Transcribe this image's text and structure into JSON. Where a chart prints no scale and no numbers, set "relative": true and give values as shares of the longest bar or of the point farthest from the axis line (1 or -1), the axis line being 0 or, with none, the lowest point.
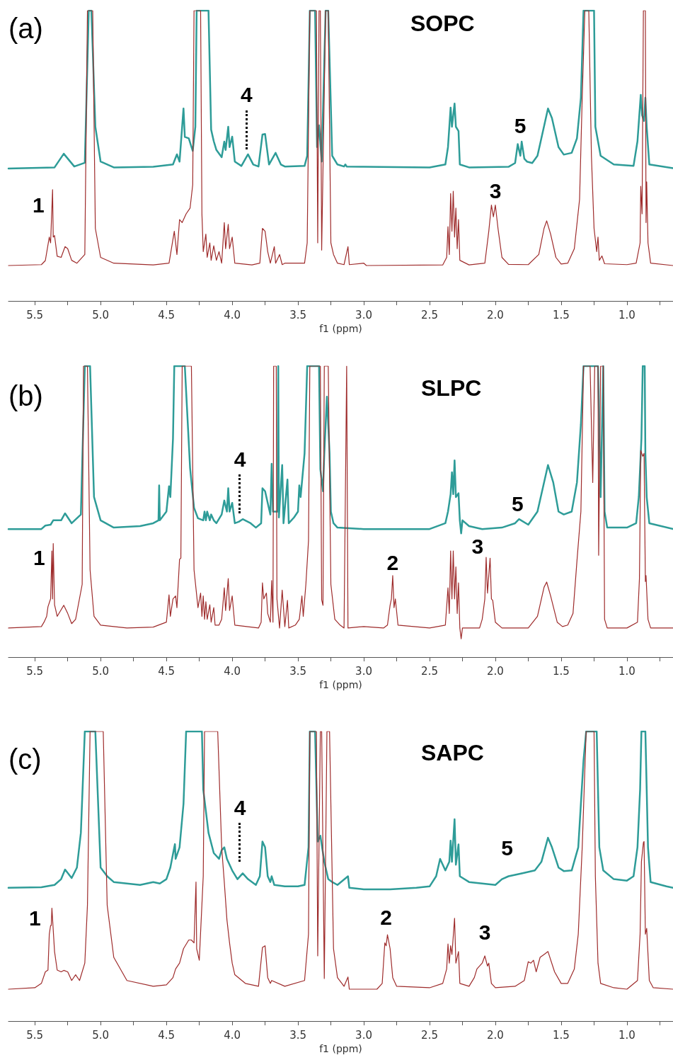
{
  "chart_data": [
    {
      "type": "line",
      "relative": true,
      "title": "SOPC",
      "xlabel": "f1 (ppm)",
      "xlim": [
        5.7,
        0.65
      ],
      "xticks": [
        {
          "value": 5.5,
          "label": "5.5"
        },
        {
          "value": 5.25,
          "label": null
        },
        {
          "value": 5.0,
          "label": "5.0"
        },
        {
          "value": 4.75,
          "label": null
        },
        {
          "value": 4.5,
          "label": "4.5"
        },
        {
          "value": 4.25,
          "label": null
        },
        {
          "value": 4.0,
          "label": "4.0"
        },
        {
          "value": 3.75,
          "label": null
        },
        {
          "value": 3.5,
          "label": "3.5"
        },
        {
          "value": 3.25,
          "label": null
        },
        {
          "value": 3.0,
          "label": "3.0"
        },
        {
          "value": 2.75,
          "label": null
        },
        {
          "value": 2.5,
          "label": "2.5"
        },
        {
          "value": 2.25,
          "label": null
        },
        {
          "value": 2.0,
          "label": "2.0"
        },
        {
          "value": 1.75,
          "label": null
        },
        {
          "value": 1.5,
          "label": "1.5"
        },
        {
          "value": 1.25,
          "label": null
        },
        {
          "value": 1.0,
          "label": "1.0"
        },
        {
          "value": 0.75,
          "label": null
        }
      ],
      "annotations": [
        "(a)",
        {
          "text": "1",
          "x": 5.365,
          "y": 0.383
        },
        {
          "text": "4",
          "x": 3.88,
          "y": 0.505
        },
        {
          "text": "5",
          "x": 1.8,
          "y": 0.549
        },
        {
          "text": "3",
          "x": 2.0,
          "y": 0.33
        }
      ],
      "series": [
        {
          "color": "#2e9c98",
          "x": [
            5.7,
            5.35,
            5.28,
            5.2,
            5.12,
            5.09,
            5.07,
            5.04,
            5.0,
            4.9,
            4.6,
            4.45,
            4.42,
            4.4,
            4.37,
            4.36,
            4.33,
            4.3,
            4.28,
            4.27,
            4.18,
            4.16,
            4.14,
            4.12,
            4.08,
            4.06,
            4.05,
            4.03,
            4.02,
            4.0,
            3.98,
            3.93,
            3.88,
            3.84,
            3.8,
            3.77,
            3.75,
            3.72,
            3.67,
            3.63,
            3.6,
            3.45,
            3.43,
            3.41,
            3.37,
            3.355,
            3.34,
            3.32,
            3.29,
            3.27,
            3.24,
            3.2,
            3.15,
            3.14,
            3.13,
            3.0,
            2.5,
            2.38,
            2.36,
            2.34,
            2.33,
            2.31,
            2.3,
            2.28,
            2.27,
            2.2,
            1.9,
            1.85,
            1.83,
            1.81,
            1.8,
            1.78,
            1.76,
            1.72,
            1.68,
            1.6,
            1.57,
            1.52,
            1.48,
            1.42,
            1.38,
            1.35,
            1.33,
            1.25,
            1.24,
            1.2,
            1.1,
            0.95,
            0.92,
            0.895,
            0.885,
            0.87,
            0.86,
            0.85,
            0.83,
            0.65
          ],
          "values": [
            0.456,
            0.46,
            0.507,
            0.463,
            0.476,
            1,
            1,
            0.6,
            0.48,
            0.46,
            0.462,
            0.47,
            0.505,
            0.48,
            0.663,
            0.565,
            0.56,
            0.517,
            0.6,
            1,
            1,
            0.59,
            0.55,
            0.52,
            0.495,
            0.549,
            0.52,
            0.6,
            0.53,
            0.566,
            0.48,
            0.465,
            0.505,
            0.47,
            0.463,
            0.573,
            0.575,
            0.47,
            0.51,
            0.47,
            0.463,
            0.465,
            0.5,
            1,
            1,
            0.53,
            0.605,
            0.48,
            1,
            1,
            0.5,
            0.47,
            0.463,
            0.47,
            0.463,
            0.462,
            0.46,
            0.47,
            0.53,
            0.666,
            0.6,
            0.68,
            0.6,
            0.585,
            0.47,
            0.46,
            0.462,
            0.475,
            0.54,
            0.5,
            0.549,
            0.49,
            0.48,
            0.475,
            0.5,
            0.663,
            0.63,
            0.53,
            0.504,
            0.51,
            0.56,
            0.7,
            1,
            1,
            0.6,
            0.5,
            0.47,
            0.465,
            0.55,
            0.71,
            0.64,
            0.62,
            0.7,
            0.6,
            0.47,
            0.457
          ]
        },
        {
          "color": "#9e2b2b",
          "x": [
            5.7,
            5.45,
            5.42,
            5.39,
            5.38,
            5.365,
            5.36,
            5.35,
            5.33,
            5.3,
            5.27,
            5.25,
            5.22,
            5.18,
            5.12,
            5.1,
            5.06,
            5.04,
            5.0,
            4.9,
            4.6,
            4.48,
            4.44,
            4.42,
            4.4,
            4.38,
            4.35,
            4.32,
            4.3,
            4.29,
            4.24,
            4.23,
            4.22,
            4.2,
            4.19,
            4.17,
            4.16,
            4.14,
            4.12,
            4.1,
            4.08,
            4.06,
            4.05,
            4.03,
            4.02,
            4.0,
            3.98,
            3.85,
            3.79,
            3.77,
            3.75,
            3.73,
            3.71,
            3.68,
            3.67,
            3.64,
            3.62,
            3.6,
            3.45,
            3.43,
            3.41,
            3.36,
            3.35,
            3.34,
            3.33,
            3.32,
            3.29,
            3.27,
            3.25,
            3.23,
            3.2,
            3.15,
            3.12,
            3.11,
            3.0,
            2.98,
            2.4,
            2.37,
            2.36,
            2.35,
            2.34,
            2.33,
            2.32,
            2.31,
            2.3,
            2.29,
            2.28,
            2.27,
            2.2,
            2.08,
            2.05,
            2.03,
            2.015,
            2.0,
            1.98,
            1.95,
            1.9,
            1.75,
            1.67,
            1.63,
            1.61,
            1.58,
            1.54,
            1.5,
            1.45,
            1.4,
            1.36,
            1.34,
            1.32,
            1.29,
            1.27,
            1.25,
            1.23,
            1.22,
            1.21,
            1.19,
            1.17,
            1.0,
            0.93,
            0.9,
            0.895,
            0.885,
            0.875,
            0.86,
            0.855,
            0.85,
            0.84,
            0.82,
            0.65
          ],
          "values": [
            0.122,
            0.125,
            0.139,
            0.22,
            0.2,
            0.383,
            0.22,
            0.225,
            0.154,
            0.15,
            0.187,
            0.18,
            0.14,
            0.13,
            0.16,
            1,
            1,
            0.25,
            0.15,
            0.13,
            0.124,
            0.13,
            0.24,
            0.16,
            0.28,
            0.27,
            0.3,
            0.32,
            0.4,
            1,
            1,
            0.3,
            0.17,
            0.23,
            0.15,
            0.2,
            0.14,
            0.19,
            0.14,
            0.17,
            0.13,
            0.27,
            0.18,
            0.264,
            0.18,
            0.22,
            0.13,
            0.124,
            0.13,
            0.25,
            0.24,
            0.17,
            0.13,
            0.187,
            0.13,
            0.16,
            0.125,
            0.13,
            0.13,
            0.2,
            1,
            1,
            0.2,
            1,
            1,
            0.175,
            1,
            1,
            0.2,
            0.16,
            0.13,
            0.125,
            0.187,
            0.125,
            0.13,
            0.122,
            0.124,
            0.15,
            0.256,
            0.16,
            0.37,
            0.24,
            0.378,
            0.22,
            0.32,
            0.18,
            0.28,
            0.14,
            0.124,
            0.13,
            0.24,
            0.33,
            0.29,
            0.33,
            0.25,
            0.15,
            0.126,
            0.125,
            0.16,
            0.25,
            0.276,
            0.23,
            0.15,
            0.127,
            0.13,
            0.18,
            0.35,
            0.7,
            1,
            1,
            0.5,
            0.25,
            0.17,
            0.22,
            0.14,
            0.155,
            0.128,
            0.125,
            0.13,
            0.2,
            0.395,
            0.3,
            1,
            1,
            0.27,
            0.41,
            0.2,
            0.13,
            0.122
          ]
        }
      ]
    },
    {
      "type": "line",
      "relative": true,
      "title": "SLPC",
      "xlabel": "f1 (ppm)",
      "xlim": [
        5.7,
        0.65
      ],
      "xticks": [
        {
          "value": 5.5,
          "label": "5.5"
        },
        {
          "value": 5.25,
          "label": null
        },
        {
          "value": 5.0,
          "label": "5.0"
        },
        {
          "value": 4.75,
          "label": null
        },
        {
          "value": 4.5,
          "label": "4.5"
        },
        {
          "value": 4.25,
          "label": null
        },
        {
          "value": 4.0,
          "label": "4.0"
        },
        {
          "value": 3.75,
          "label": null
        },
        {
          "value": 3.5,
          "label": "3.5"
        },
        {
          "value": 3.25,
          "label": null
        },
        {
          "value": 3.0,
          "label": "3.0"
        },
        {
          "value": 2.75,
          "label": null
        },
        {
          "value": 2.5,
          "label": "2.5"
        },
        {
          "value": 2.25,
          "label": null
        },
        {
          "value": 2.0,
          "label": "2.0"
        },
        {
          "value": 1.75,
          "label": null
        },
        {
          "value": 1.5,
          "label": "1.5"
        },
        {
          "value": 1.25,
          "label": null
        },
        {
          "value": 1.0,
          "label": "1.0"
        },
        {
          "value": 0.75,
          "label": null
        }
      ],
      "annotations": [
        "(b)",
        {
          "text": "1",
          "x": 5.36,
          "y": 0.39
        },
        {
          "text": "4",
          "x": 3.92,
          "y": 0.474
        },
        {
          "text": "5",
          "x": 1.82,
          "y": 0.474
        },
        {
          "text": "2",
          "x": 2.78,
          "y": 0.28
        },
        {
          "text": "3",
          "x": 2.07,
          "y": 0.343
        }
      ],
      "series": [
        {
          "color": "#2e9c98",
          "x": [
            5.7,
            5.45,
            5.42,
            5.38,
            5.36,
            5.3,
            5.27,
            5.22,
            5.15,
            5.12,
            5.08,
            5.05,
            5.0,
            4.9,
            4.7,
            4.6,
            4.56,
            4.555,
            4.55,
            4.5,
            4.48,
            4.47,
            4.45,
            4.44,
            4.36,
            4.32,
            4.29,
            4.26,
            4.22,
            4.21,
            4.2,
            4.19,
            4.17,
            4.16,
            4.14,
            4.12,
            4.08,
            4.06,
            4.04,
            4.03,
            4.02,
            4.0,
            3.98,
            3.95,
            3.92,
            3.86,
            3.82,
            3.78,
            3.77,
            3.75,
            3.73,
            3.71,
            3.7,
            3.69,
            3.655,
            3.65,
            3.645,
            3.62,
            3.61,
            3.58,
            3.57,
            3.53,
            3.5,
            3.49,
            3.48,
            3.45,
            3.43,
            3.34,
            3.33,
            3.31,
            3.3,
            3.28,
            3.26,
            3.25,
            3.23,
            3.2,
            3.0,
            2.5,
            2.38,
            2.36,
            2.34,
            2.33,
            2.32,
            2.31,
            2.3,
            2.28,
            2.27,
            2.26,
            2.25,
            2.2,
            2.1,
            1.95,
            1.85,
            1.82,
            1.75,
            1.68,
            1.6,
            1.56,
            1.52,
            1.48,
            1.42,
            1.38,
            1.35,
            1.33,
            1.24,
            1.22,
            1.2,
            1.18,
            1.17,
            1.15,
            1.0,
            0.93,
            0.91,
            0.89,
            0.88,
            0.865,
            0.86,
            0.85,
            0.83,
            0.65
          ],
          "values": [
            0.44,
            0.44,
            0.452,
            0.455,
            0.47,
            0.47,
            0.494,
            0.46,
            0.49,
            1,
            1,
            0.55,
            0.47,
            0.445,
            0.45,
            0.46,
            0.47,
            0.59,
            0.47,
            0.5,
            0.587,
            0.55,
            0.75,
            1,
            1,
            0.65,
            0.513,
            0.477,
            0.47,
            0.5,
            0.47,
            0.5,
            0.47,
            0.49,
            0.47,
            0.46,
            0.49,
            0.538,
            0.5,
            0.58,
            0.5,
            0.53,
            0.46,
            0.465,
            0.474,
            0.46,
            0.445,
            0.46,
            0.58,
            0.57,
            0.53,
            0.49,
            0.664,
            0.5,
            0.5,
            1,
            0.48,
            0.66,
            0.46,
            0.61,
            0.46,
            0.48,
            0.5,
            0.59,
            0.55,
            0.7,
            1,
            1,
            0.645,
            0.57,
            0.7,
            0.895,
            0.7,
            0.5,
            0.46,
            0.445,
            0.44,
            0.44,
            0.46,
            0.5,
            0.56,
            0.635,
            0.56,
            0.676,
            0.55,
            0.563,
            0.47,
            0.425,
            0.47,
            0.45,
            0.44,
            0.445,
            0.46,
            0.474,
            0.455,
            0.5,
            0.66,
            0.6,
            0.5,
            0.49,
            0.5,
            0.6,
            0.8,
            1,
            1,
            1,
            0.55,
            1,
            0.5,
            0.445,
            0.445,
            0.46,
            0.55,
            0.75,
            1,
            1,
            0.7,
            0.55,
            0.46,
            0.44
          ]
        },
        {
          "color": "#9e2b2b",
          "x": [
            5.7,
            5.45,
            5.43,
            5.41,
            5.4,
            5.38,
            5.37,
            5.365,
            5.36,
            5.35,
            5.34,
            5.33,
            5.31,
            5.28,
            5.25,
            5.22,
            5.19,
            5.14,
            5.13,
            5.1,
            5.08,
            5.05,
            5.0,
            4.8,
            4.6,
            4.5,
            4.48,
            4.47,
            4.45,
            4.43,
            4.42,
            4.4,
            4.39,
            4.38,
            4.31,
            4.29,
            4.26,
            4.24,
            4.23,
            4.22,
            4.21,
            4.2,
            4.19,
            4.17,
            4.16,
            4.14,
            4.13,
            4.1,
            4.08,
            4.06,
            4.05,
            4.03,
            4.02,
            4.0,
            3.98,
            3.8,
            3.78,
            3.77,
            3.76,
            3.74,
            3.73,
            3.71,
            3.7,
            3.69,
            3.685,
            3.665,
            3.66,
            3.64,
            3.62,
            3.6,
            3.58,
            3.57,
            3.52,
            3.49,
            3.47,
            3.46,
            3.44,
            3.42,
            3.41,
            3.33,
            3.32,
            3.31,
            3.3,
            3.27,
            3.25,
            3.22,
            3.18,
            3.15,
            3.13,
            3.12,
            3.0,
            2.85,
            2.82,
            2.8,
            2.79,
            2.78,
            2.77,
            2.76,
            2.74,
            2.5,
            2.38,
            2.36,
            2.35,
            2.34,
            2.33,
            2.32,
            2.31,
            2.3,
            2.29,
            2.28,
            2.27,
            2.26,
            2.25,
            2.12,
            2.1,
            2.08,
            2.07,
            2.06,
            2.04,
            2.03,
            2.02,
            2.0,
            1.95,
            1.75,
            1.68,
            1.63,
            1.61,
            1.58,
            1.53,
            1.49,
            1.45,
            1.41,
            1.38,
            1.35,
            1.33,
            1.28,
            1.26,
            1.245,
            1.22,
            1.215,
            1.2,
            1.18,
            1.17,
            1.15,
            1.0,
            0.92,
            0.905,
            0.895,
            0.88,
            0.87,
            0.86,
            0.855,
            0.84,
            0.82,
            0.65
          ],
          "values": [
            0.1,
            0.105,
            0.12,
            0.14,
            0.173,
            0.2,
            0.365,
            0.2,
            0.39,
            0.18,
            0.16,
            0.14,
            0.155,
            0.178,
            0.15,
            0.115,
            0.13,
            0.25,
            1,
            1,
            0.3,
            0.14,
            0.11,
            0.1,
            0.103,
            0.12,
            0.214,
            0.14,
            0.2,
            0.21,
            0.17,
            0.336,
            0.34,
            1,
            1,
            0.3,
            0.17,
            0.22,
            0.14,
            0.21,
            0.13,
            0.19,
            0.13,
            0.18,
            0.12,
            0.17,
            0.11,
            0.11,
            0.13,
            0.238,
            0.16,
            0.27,
            0.16,
            0.21,
            0.11,
            0.1,
            0.12,
            0.255,
            0.2,
            0.22,
            0.15,
            0.12,
            0.263,
            0.12,
            1,
            1,
            0.2,
            0.1,
            0.23,
            0.105,
            0.195,
            0.1,
            0.11,
            0.13,
            0.21,
            0.14,
            0.25,
            0.4,
            1,
            1,
            0.197,
            0.178,
            1,
            1,
            0.25,
            0.13,
            0.11,
            0.1,
            1,
            0.1,
            0.105,
            0.1,
            0.11,
            0.178,
            0.2,
            0.28,
            0.17,
            0.2,
            0.11,
            0.1,
            0.11,
            0.238,
            0.15,
            0.365,
            0.2,
            0.365,
            0.2,
            0.31,
            0.15,
            0.255,
            0.1,
            0.063,
            0.1,
            0.1,
            0.13,
            0.2,
            0.343,
            0.22,
            0.34,
            0.2,
            0.195,
            0.12,
            0.1,
            0.1,
            0.14,
            0.24,
            0.258,
            0.21,
            0.12,
            0.105,
            0.11,
            0.15,
            0.33,
            0.5,
            1,
            1,
            0.6,
            1,
            1,
            0.35,
            1,
            1,
            0.13,
            0.1,
            0.1,
            0.12,
            0.27,
            0.71,
            0.69,
            0.7,
            0.26,
            0.28,
            0.13,
            0.1,
            0.1
          ]
        }
      ]
    },
    {
      "type": "line",
      "relative": true,
      "title": "SAPC",
      "xlabel": "f1 (ppm)",
      "xlim": [
        5.7,
        0.65
      ],
      "xticks": [
        {
          "value": 5.5,
          "label": "5.5"
        },
        {
          "value": 5.25,
          "label": null
        },
        {
          "value": 5.0,
          "label": "5.0"
        },
        {
          "value": 4.75,
          "label": null
        },
        {
          "value": 4.5,
          "label": "4.5"
        },
        {
          "value": 4.25,
          "label": null
        },
        {
          "value": 4.0,
          "label": "4.0"
        },
        {
          "value": 3.75,
          "label": null
        },
        {
          "value": 3.5,
          "label": "3.5"
        },
        {
          "value": 3.25,
          "label": null
        },
        {
          "value": 3.0,
          "label": "3.0"
        },
        {
          "value": 2.75,
          "label": null
        },
        {
          "value": 2.5,
          "label": "2.5"
        },
        {
          "value": 2.25,
          "label": null
        },
        {
          "value": 2.0,
          "label": "2.0"
        },
        {
          "value": 1.75,
          "label": null
        },
        {
          "value": 1.5,
          "label": "1.5"
        },
        {
          "value": 1.25,
          "label": null
        },
        {
          "value": 1.0,
          "label": "1.0"
        },
        {
          "value": 0.75,
          "label": null
        }
      ],
      "annotations": [
        "(c)",
        {
          "text": "1",
          "x": 5.37,
          "y": 0.39
        },
        {
          "text": "4",
          "x": 3.92,
          "y": 0.51
        },
        {
          "text": "5",
          "x": 1.9,
          "y": 0.5
        },
        {
          "text": "2",
          "x": 2.82,
          "y": 0.298
        },
        {
          "text": "3",
          "x": 2.08,
          "y": 0.225
        }
      ],
      "series": [
        {
          "color": "#2e9c98",
          "x": [
            5.7,
            5.45,
            5.35,
            5.3,
            5.27,
            5.22,
            5.18,
            5.15,
            5.12,
            5.04,
            5.0,
            4.95,
            4.9,
            4.8,
            4.7,
            4.6,
            4.55,
            4.5,
            4.47,
            4.44,
            4.435,
            4.43,
            4.4,
            4.37,
            4.35,
            4.23,
            4.22,
            4.18,
            4.14,
            4.1,
            4.08,
            4.06,
            4.04,
            4.0,
            3.96,
            3.92,
            3.88,
            3.82,
            3.79,
            3.77,
            3.75,
            3.73,
            3.71,
            3.7,
            3.68,
            3.6,
            3.5,
            3.45,
            3.42,
            3.41,
            3.37,
            3.35,
            3.33,
            3.3,
            3.27,
            3.24,
            3.2,
            3.12,
            3.11,
            3.0,
            2.8,
            2.6,
            2.5,
            2.45,
            2.42,
            2.38,
            2.35,
            2.34,
            2.33,
            2.31,
            2.3,
            2.28,
            2.27,
            2.2,
            2.1,
            2.0,
            1.95,
            1.9,
            1.8,
            1.7,
            1.65,
            1.6,
            1.57,
            1.52,
            1.48,
            1.42,
            1.37,
            1.33,
            1.31,
            1.23,
            1.21,
            1.18,
            1.1,
            1.0,
            0.95,
            0.92,
            0.9,
            0.89,
            0.86,
            0.84,
            0.82,
            0.7,
            0.65
          ],
          "values": [
            0.46,
            0.462,
            0.47,
            0.49,
            0.523,
            0.494,
            0.53,
            0.65,
            1,
            1,
            0.53,
            0.5,
            0.48,
            0.475,
            0.47,
            0.48,
            0.475,
            0.49,
            0.53,
            0.6,
            0.611,
            0.56,
            0.6,
            0.75,
            1,
            1,
            0.8,
            0.65,
            0.58,
            0.56,
            0.59,
            0.6,
            0.56,
            0.52,
            0.49,
            0.51,
            0.49,
            0.47,
            0.5,
            0.62,
            0.6,
            0.5,
            0.48,
            0.5,
            0.47,
            0.465,
            0.465,
            0.47,
            0.6,
            1,
            1,
            0.62,
            0.64,
            0.55,
            0.49,
            0.48,
            0.47,
            0.5,
            0.46,
            0.455,
            0.455,
            0.46,
            0.465,
            0.5,
            0.56,
            0.52,
            0.55,
            0.623,
            0.55,
            0.697,
            0.54,
            0.61,
            0.5,
            0.48,
            0.475,
            0.47,
            0.49,
            0.5,
            0.51,
            0.52,
            0.55,
            0.633,
            0.6,
            0.53,
            0.518,
            0.52,
            0.6,
            0.9,
            1,
            1,
            0.6,
            0.52,
            0.49,
            0.485,
            0.5,
            0.6,
            0.8,
            1,
            1,
            0.6,
            0.48,
            0.465,
            0.46
          ]
        },
        {
          "color": "#9e2b2b",
          "x": [
            5.7,
            5.5,
            5.45,
            5.42,
            5.4,
            5.39,
            5.38,
            5.375,
            5.37,
            5.36,
            5.35,
            5.33,
            5.3,
            5.28,
            5.25,
            5.22,
            5.19,
            5.16,
            5.12,
            5.1,
            5.08,
            4.98,
            4.95,
            4.9,
            4.8,
            4.6,
            4.5,
            4.45,
            4.43,
            4.4,
            4.37,
            4.33,
            4.31,
            4.29,
            4.275,
            4.27,
            4.25,
            4.22,
            4.21,
            4.11,
            4.08,
            4.06,
            4.04,
            4.02,
            4.0,
            3.98,
            3.9,
            3.8,
            3.77,
            3.75,
            3.73,
            3.71,
            3.7,
            3.6,
            3.45,
            3.42,
            3.41,
            3.36,
            3.35,
            3.33,
            3.32,
            3.3,
            3.28,
            3.26,
            3.23,
            3.2,
            3.15,
            3.12,
            3.11,
            3.0,
            2.9,
            2.86,
            2.84,
            2.83,
            2.82,
            2.8,
            2.78,
            2.75,
            2.5,
            2.4,
            2.37,
            2.36,
            2.35,
            2.34,
            2.33,
            2.31,
            2.3,
            2.28,
            2.27,
            2.2,
            2.16,
            2.14,
            2.1,
            2.08,
            2.06,
            2.05,
            2.03,
            2.0,
            1.85,
            1.78,
            1.75,
            1.73,
            1.71,
            1.69,
            1.66,
            1.63,
            1.6,
            1.55,
            1.5,
            1.45,
            1.4,
            1.37,
            1.34,
            1.31,
            1.25,
            1.24,
            1.22,
            1.2,
            1.1,
            1.0,
            0.92,
            0.9,
            0.89,
            0.875,
            0.87,
            0.86,
            0.85,
            0.83,
            0.8,
            0.65
          ],
          "values": [
            0.11,
            0.115,
            0.13,
            0.17,
            0.176,
            0.3,
            0.33,
            0.33,
            0.39,
            0.315,
            0.24,
            0.176,
            0.17,
            0.175,
            0.17,
            0.14,
            0.16,
            0.14,
            0.2,
            0.4,
            1,
            1,
            0.4,
            0.22,
            0.14,
            0.12,
            0.125,
            0.15,
            0.18,
            0.2,
            0.25,
            0.28,
            0.28,
            0.27,
            0.48,
            0.25,
            0.21,
            0.5,
            1,
            1,
            0.6,
            0.48,
            0.35,
            0.27,
            0.2,
            0.16,
            0.13,
            0.12,
            0.254,
            0.26,
            0.15,
            0.13,
            0.14,
            0.12,
            0.14,
            0.3,
            1,
            1,
            0.225,
            1,
            1,
            0.147,
            1,
            1,
            0.25,
            0.15,
            0.12,
            0.152,
            0.11,
            0.11,
            0.11,
            0.13,
            0.27,
            0.26,
            0.298,
            0.25,
            0.15,
            0.12,
            0.115,
            0.13,
            0.18,
            0.266,
            0.2,
            0.26,
            0.23,
            0.355,
            0.2,
            0.24,
            0.13,
            0.12,
            0.15,
            0.18,
            0.2,
            0.225,
            0.19,
            0.2,
            0.13,
            0.115,
            0.12,
            0.14,
            0.205,
            0.2,
            0.21,
            0.17,
            0.22,
            0.23,
            0.24,
            0.17,
            0.13,
            0.13,
            0.18,
            0.3,
            0.6,
            1,
            1,
            0.5,
            0.2,
            0.13,
            0.115,
            0.11,
            0.14,
            0.3,
            0.55,
            0.616,
            0.62,
            0.3,
            0.32,
            0.14,
            0.115,
            0.11
          ]
        }
      ]
    }
  ]
}
